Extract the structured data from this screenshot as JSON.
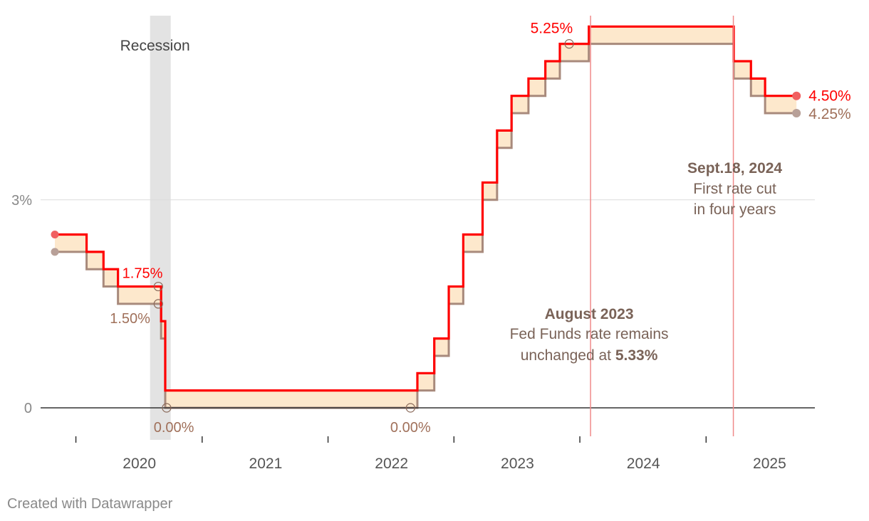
{
  "chart_data": {
    "type": "area",
    "y_unit": "%",
    "ylim": [
      0,
      5.5
    ],
    "xlim": [
      "2019-05-01",
      "2025-04-01"
    ],
    "y_ticks": [
      {
        "value": 0,
        "label": "0"
      },
      {
        "value": 3,
        "label": "3%"
      }
    ],
    "x_ticks": [
      {
        "date": "2020-01-01",
        "label": "2020"
      },
      {
        "date": "2021-01-01",
        "label": "2021"
      },
      {
        "date": "2022-01-01",
        "label": "2022"
      },
      {
        "date": "2023-01-01",
        "label": "2023"
      },
      {
        "date": "2024-01-01",
        "label": "2024"
      },
      {
        "date": "2025-01-01",
        "label": "2025"
      }
    ],
    "series": [
      {
        "role": "upper",
        "color": "#ff0000",
        "steps": [
          [
            "2019-05-01",
            2.5
          ],
          [
            "2019-08-01",
            2.25
          ],
          [
            "2019-09-19",
            2.0
          ],
          [
            "2019-10-31",
            1.75
          ],
          [
            "2020-03-04",
            1.25
          ],
          [
            "2020-03-16",
            0.25
          ],
          [
            "2022-03-17",
            0.5
          ],
          [
            "2022-05-05",
            1.0
          ],
          [
            "2022-06-16",
            1.75
          ],
          [
            "2022-07-28",
            2.5
          ],
          [
            "2022-09-22",
            3.25
          ],
          [
            "2022-11-03",
            4.0
          ],
          [
            "2022-12-15",
            4.5
          ],
          [
            "2023-02-02",
            4.75
          ],
          [
            "2023-03-23",
            5.0
          ],
          [
            "2023-05-04",
            5.25
          ],
          [
            "2023-07-27",
            5.5
          ],
          [
            "2024-09-19",
            5.0
          ],
          [
            "2024-11-08",
            4.75
          ],
          [
            "2024-12-19",
            4.5
          ],
          [
            "2025-03-20",
            4.5
          ]
        ]
      },
      {
        "role": "lower",
        "color": "#a88a7c",
        "steps": [
          [
            "2019-05-01",
            2.25
          ],
          [
            "2019-08-01",
            2.0
          ],
          [
            "2019-09-19",
            1.75
          ],
          [
            "2019-10-31",
            1.5
          ],
          [
            "2020-03-04",
            1.0
          ],
          [
            "2020-03-16",
            0.0
          ],
          [
            "2022-03-17",
            0.25
          ],
          [
            "2022-05-05",
            0.75
          ],
          [
            "2022-06-16",
            1.5
          ],
          [
            "2022-07-28",
            2.25
          ],
          [
            "2022-09-22",
            3.0
          ],
          [
            "2022-11-03",
            3.75
          ],
          [
            "2022-12-15",
            4.25
          ],
          [
            "2023-02-02",
            4.5
          ],
          [
            "2023-03-23",
            4.75
          ],
          [
            "2023-05-04",
            5.0
          ],
          [
            "2023-07-27",
            5.25
          ],
          [
            "2024-09-19",
            4.75
          ],
          [
            "2024-11-08",
            4.5
          ],
          [
            "2024-12-19",
            4.25
          ],
          [
            "2025-03-20",
            4.25
          ]
        ]
      }
    ],
    "band_color": "#fde8cc",
    "recession": {
      "label": "Recession",
      "start": "2020-02-01",
      "end": "2020-04-01",
      "color": "#e3e3e3"
    },
    "reference_lines": [
      {
        "date": "2023-08-01",
        "color": "#f08a8a"
      },
      {
        "date": "2024-09-18",
        "color": "#f08a8a"
      }
    ],
    "value_labels": [
      {
        "text": "1.75%",
        "color": "#ff0000"
      },
      {
        "text": "1.50%",
        "color": "#a0705a"
      },
      {
        "text": "0.00%",
        "color": "#a0705a"
      },
      {
        "text": "0.00%",
        "color": "#a0705a"
      },
      {
        "text": "5.25%",
        "color": "#ff0000"
      },
      {
        "text": "4.50%",
        "color": "#ff0000"
      },
      {
        "text": "4.25%",
        "color": "#a0705a"
      }
    ],
    "annotations": [
      {
        "bold": "August 2023",
        "lines": [
          "Fed Funds rate remains",
          "unchanged at "
        ],
        "highlight": "5.33%"
      },
      {
        "bold": "Sept.18, 2024",
        "lines": [
          "First rate cut",
          "in four years"
        ]
      }
    ]
  },
  "footer": {
    "credit": "Created with Datawrapper"
  }
}
